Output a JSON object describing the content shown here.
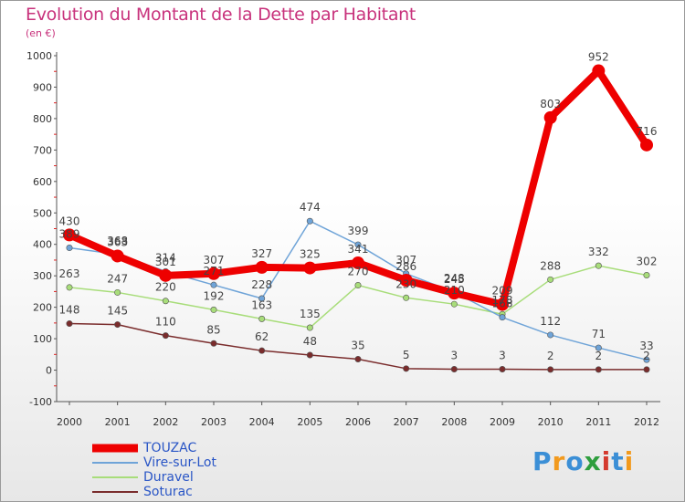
{
  "title": "Evolution du Montant de la Dette par Habitant",
  "subtitle": "(en €)",
  "logo": "Proxiti",
  "logo_colors": [
    "#3b8fd6",
    "#f29a1e",
    "#3b8fd6",
    "#2e9e3e",
    "#d43a2f",
    "#3b8fd6",
    "#f29a1e"
  ],
  "chart_data": {
    "type": "line",
    "x": [
      "2000",
      "2001",
      "2002",
      "2003",
      "2004",
      "2005",
      "2006",
      "2007",
      "2008",
      "2009",
      "2010",
      "2011",
      "2012"
    ],
    "ylim": [
      -100,
      1000
    ],
    "yticks": [
      "-100",
      "0",
      "100",
      "200",
      "300",
      "400",
      "500",
      "600",
      "700",
      "800",
      "900",
      "1000"
    ],
    "grid": false,
    "legend_position": "bottom-left",
    "series": [
      {
        "name": "TOUZAC",
        "color": "#ee0000",
        "values": [
          430,
          363,
          301,
          307,
          327,
          325,
          341,
          286,
          245,
          209,
          803,
          952,
          716
        ],
        "labels": [
          "430",
          "363",
          "301",
          "307",
          "327",
          "325",
          "341",
          "286",
          "245",
          "209",
          "803",
          "952",
          "716"
        ]
      },
      {
        "name": "Vire-sur-Lot",
        "color": "#6fa4d8",
        "values": [
          389,
          368,
          314,
          271,
          228,
          474,
          399,
          307,
          248,
          168,
          112,
          71,
          33
        ],
        "labels": [
          "389",
          "368",
          "314",
          "271",
          "228",
          "474",
          "399",
          "307",
          "248",
          "168",
          "112",
          "71",
          "33"
        ]
      },
      {
        "name": "Duravel",
        "color": "#a8dd7a",
        "values": [
          263,
          247,
          220,
          192,
          163,
          135,
          270,
          230,
          210,
          178,
          288,
          332,
          302
        ],
        "labels": [
          "263",
          "247",
          "220",
          "192",
          "163",
          "135",
          "270",
          "230",
          "210",
          "178",
          "288",
          "332",
          "302"
        ]
      },
      {
        "name": "Soturac",
        "color": "#7a2c2c",
        "values": [
          148,
          145,
          110,
          85,
          62,
          48,
          35,
          5,
          3,
          3,
          2,
          2,
          2
        ],
        "labels": [
          "148",
          "145",
          "110",
          "85",
          "62",
          "48",
          "35",
          "5",
          "3",
          "3",
          "2",
          "2",
          "2"
        ]
      }
    ]
  }
}
